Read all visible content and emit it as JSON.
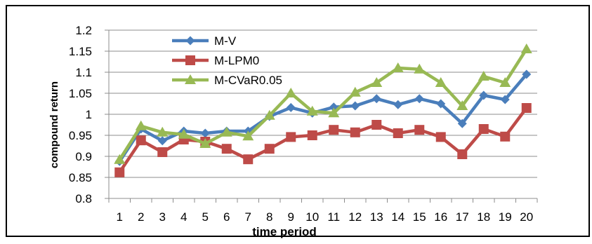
{
  "chart_data": {
    "type": "line",
    "xlabel": "time period",
    "ylabel": "compound return",
    "x": [
      1,
      2,
      3,
      4,
      5,
      6,
      7,
      8,
      9,
      10,
      11,
      12,
      13,
      14,
      15,
      16,
      17,
      18,
      19,
      20
    ],
    "ylim": [
      0.8,
      1.2
    ],
    "yticks": [
      "0.8",
      "0.85",
      "0.9",
      "0.95",
      "1",
      "1.05",
      "1.1",
      "1.15",
      "1.2"
    ],
    "grid": "horizontal",
    "legend_position": "top-left",
    "series": [
      {
        "name": "M-V",
        "color": "#4a7ebb",
        "marker": "diamond",
        "values": [
          0.888,
          0.965,
          0.937,
          0.96,
          0.955,
          0.96,
          0.96,
          0.995,
          1.016,
          1.003,
          1.017,
          1.02,
          1.037,
          1.023,
          1.037,
          1.025,
          0.978,
          1.045,
          1.035,
          1.095
        ]
      },
      {
        "name": "M-LPM0",
        "color": "#be4b48",
        "marker": "square",
        "values": [
          0.862,
          0.938,
          0.91,
          0.94,
          0.935,
          0.918,
          0.893,
          0.918,
          0.946,
          0.95,
          0.963,
          0.957,
          0.975,
          0.955,
          0.963,
          0.946,
          0.905,
          0.965,
          0.947,
          1.015
        ]
      },
      {
        "name": "M-CVaR0.05",
        "color": "#98b954",
        "marker": "triangle",
        "values": [
          0.892,
          0.972,
          0.957,
          0.952,
          0.93,
          0.957,
          0.948,
          0.997,
          1.05,
          1.007,
          1.003,
          1.052,
          1.075,
          1.11,
          1.107,
          1.075,
          1.02,
          1.09,
          1.075,
          1.155
        ]
      }
    ]
  }
}
